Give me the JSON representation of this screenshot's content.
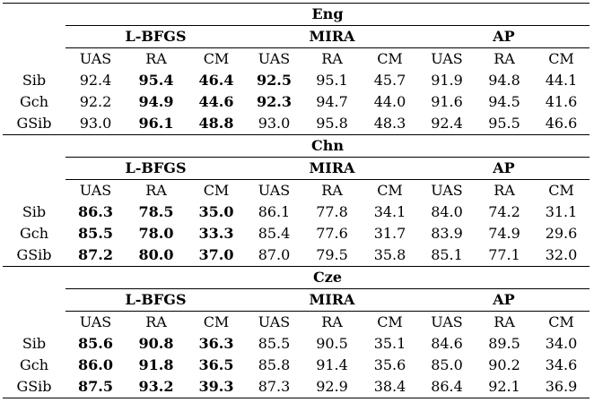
{
  "table": {
    "algorithms": [
      "L-BFGS",
      "MIRA",
      "AP"
    ],
    "metrics": [
      "UAS",
      "RA",
      "CM"
    ],
    "sections": [
      {
        "language": "Eng",
        "rows": [
          {
            "label": "Sib",
            "values": [
              "92.4",
              "95.4",
              "46.4",
              "92.5",
              "95.1",
              "45.7",
              "91.9",
              "94.8",
              "44.1"
            ],
            "bold": [
              false,
              true,
              true,
              true,
              false,
              false,
              false,
              false,
              false
            ]
          },
          {
            "label": "Gch",
            "values": [
              "92.2",
              "94.9",
              "44.6",
              "92.3",
              "94.7",
              "44.0",
              "91.6",
              "94.5",
              "41.6"
            ],
            "bold": [
              false,
              true,
              true,
              true,
              false,
              false,
              false,
              false,
              false
            ]
          },
          {
            "label": "GSib",
            "values": [
              "93.0",
              "96.1",
              "48.8",
              "93.0",
              "95.8",
              "48.3",
              "92.4",
              "95.5",
              "46.6"
            ],
            "bold": [
              false,
              true,
              true,
              false,
              false,
              false,
              false,
              false,
              false
            ]
          }
        ]
      },
      {
        "language": "Chn",
        "rows": [
          {
            "label": "Sib",
            "values": [
              "86.3",
              "78.5",
              "35.0",
              "86.1",
              "77.8",
              "34.1",
              "84.0",
              "74.2",
              "31.1"
            ],
            "bold": [
              true,
              true,
              true,
              false,
              false,
              false,
              false,
              false,
              false
            ]
          },
          {
            "label": "Gch",
            "values": [
              "85.5",
              "78.0",
              "33.3",
              "85.4",
              "77.6",
              "31.7",
              "83.9",
              "74.9",
              "29.6"
            ],
            "bold": [
              true,
              true,
              true,
              false,
              false,
              false,
              false,
              false,
              false
            ]
          },
          {
            "label": "GSib",
            "values": [
              "87.2",
              "80.0",
              "37.0",
              "87.0",
              "79.5",
              "35.8",
              "85.1",
              "77.1",
              "32.0"
            ],
            "bold": [
              true,
              true,
              true,
              false,
              false,
              false,
              false,
              false,
              false
            ]
          }
        ]
      },
      {
        "language": "Cze",
        "rows": [
          {
            "label": "Sib",
            "values": [
              "85.6",
              "90.8",
              "36.3",
              "85.5",
              "90.5",
              "35.1",
              "84.6",
              "89.5",
              "34.0"
            ],
            "bold": [
              true,
              true,
              true,
              false,
              false,
              false,
              false,
              false,
              false
            ]
          },
          {
            "label": "Gch",
            "values": [
              "86.0",
              "91.8",
              "36.5",
              "85.8",
              "91.4",
              "35.6",
              "85.0",
              "90.2",
              "34.6"
            ],
            "bold": [
              true,
              true,
              true,
              false,
              false,
              false,
              false,
              false,
              false
            ]
          },
          {
            "label": "GSib",
            "values": [
              "87.5",
              "93.2",
              "39.3",
              "87.3",
              "92.9",
              "38.4",
              "86.4",
              "92.1",
              "36.9"
            ],
            "bold": [
              true,
              true,
              true,
              false,
              false,
              false,
              false,
              false,
              false
            ]
          }
        ]
      }
    ]
  }
}
